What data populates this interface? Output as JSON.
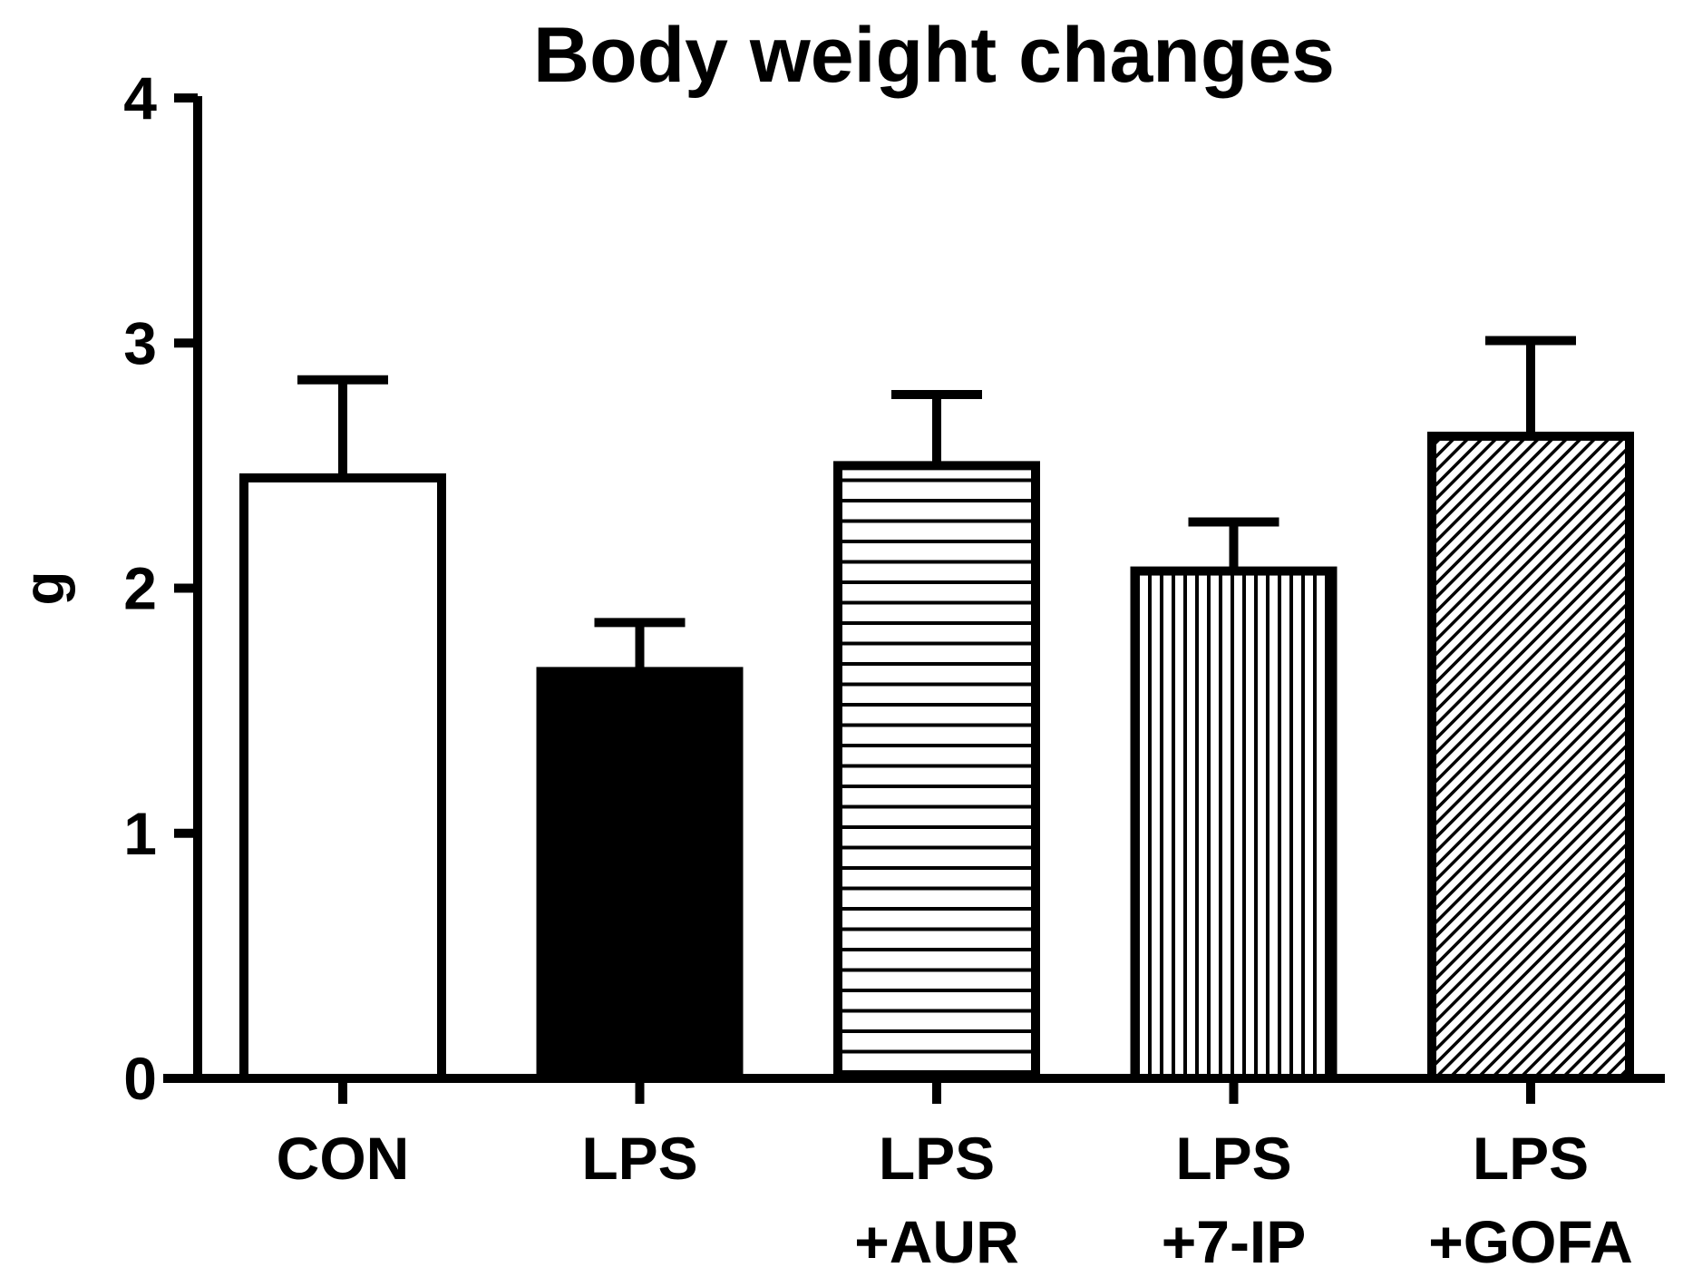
{
  "chart_data": {
    "type": "bar",
    "title": "Body weight changes",
    "xlabel": "",
    "ylabel": "g",
    "ylim": [
      0,
      4
    ],
    "yticks": [
      0,
      1,
      2,
      3,
      4
    ],
    "grid": false,
    "categories": [
      [
        "CON"
      ],
      [
        "LPS"
      ],
      [
        "LPS",
        "+AUR"
      ],
      [
        "LPS",
        "+7-IP"
      ],
      [
        "LPS",
        "+GOFA"
      ]
    ],
    "values": [
      2.45,
      1.66,
      2.5,
      2.07,
      2.62
    ],
    "error": [
      0.4,
      0.2,
      0.29,
      0.2,
      0.39
    ],
    "fill_patterns": [
      "white",
      "solid-black",
      "horizontal-lines",
      "vertical-lines",
      "diagonal-lines"
    ],
    "colors": {
      "outline": "#000000",
      "background": "#ffffff"
    }
  }
}
